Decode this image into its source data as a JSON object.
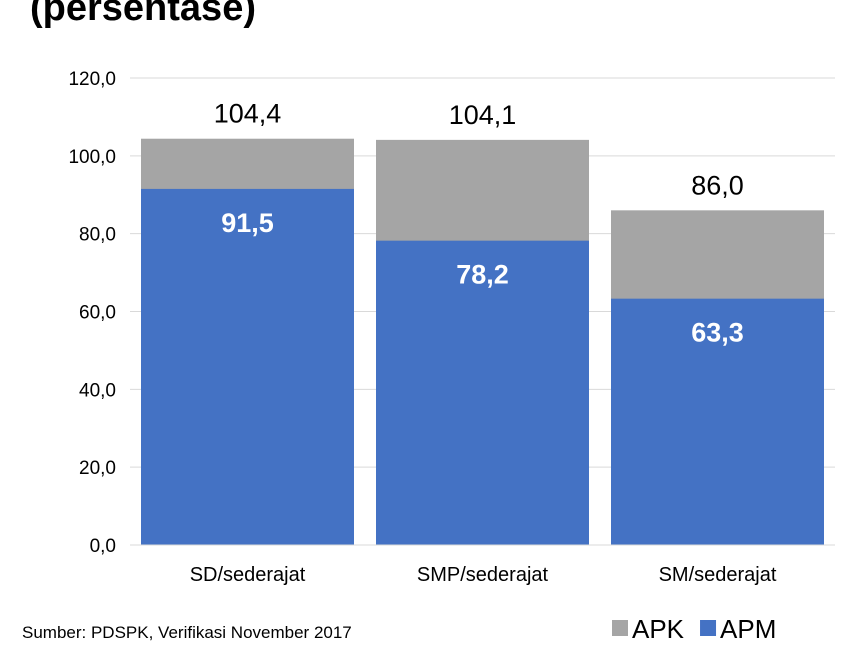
{
  "chart_data": {
    "type": "bar",
    "title": "(persentase)",
    "categories": [
      "SD/sederajat",
      "SMP/sederajat",
      "SM/sederajat"
    ],
    "series": [
      {
        "name": "APK",
        "color": "#a5a5a5",
        "values": [
          104.4,
          104.1,
          86.0
        ],
        "value_labels": [
          "104,4",
          "104,1",
          "86,0"
        ]
      },
      {
        "name": "APM",
        "color": "#4472c4",
        "values": [
          91.5,
          78.2,
          63.3
        ],
        "value_labels": [
          "91,5",
          "78,2",
          "63,3"
        ]
      }
    ],
    "ylim": [
      0,
      120
    ],
    "yticks": [
      {
        "value": 0,
        "label": "0,0"
      },
      {
        "value": 20,
        "label": "20,0"
      },
      {
        "value": 40,
        "label": "40,0"
      },
      {
        "value": 60,
        "label": "60,0"
      },
      {
        "value": 80,
        "label": "80,0"
      },
      {
        "value": 100,
        "label": "100,0"
      },
      {
        "value": 120,
        "label": "120,0"
      }
    ],
    "grid": true,
    "source": "Sumber: PDSPK, Verifikasi November 2017"
  }
}
